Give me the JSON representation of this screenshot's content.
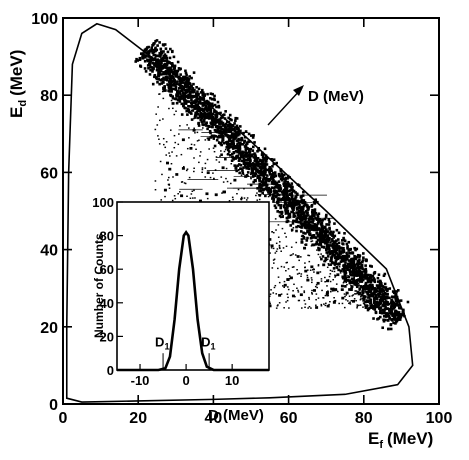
{
  "chart_data": [
    {
      "type": "scatter",
      "xlabel_main": "E",
      "xlabel_sub": "f",
      "xlabel_unit": "(MeV)",
      "ylabel_main": "E",
      "ylabel_sub": "d",
      "ylabel_unit": "(MeV)",
      "xlim": [
        0,
        100
      ],
      "ylim": [
        0,
        100
      ],
      "xticks": [
        "0",
        "20",
        "40",
        "60",
        "80",
        "100"
      ],
      "yticks": [
        "0",
        "20",
        "40",
        "60",
        "80",
        "100"
      ],
      "annotation": "D (MeV)",
      "band": {
        "x_start": 22,
        "x_end": 90,
        "y_start": 92,
        "y_end": 22,
        "half_width": 2.4
      },
      "kinematic_boundary": [
        [
          1,
          20
        ],
        [
          1.5,
          60
        ],
        [
          2.5,
          88
        ],
        [
          5,
          96
        ],
        [
          9,
          98.5
        ],
        [
          14,
          97
        ],
        [
          30,
          85
        ],
        [
          50,
          68
        ],
        [
          70,
          50
        ],
        [
          86,
          35
        ],
        [
          92,
          20
        ],
        [
          93,
          10
        ],
        [
          89,
          5
        ],
        [
          75,
          2.5
        ],
        [
          55,
          1.6
        ],
        [
          40,
          1.2
        ],
        [
          20,
          0.8
        ],
        [
          5,
          0.5
        ],
        [
          1,
          1.5
        ],
        [
          1,
          20
        ]
      ]
    },
    {
      "type": "line",
      "ylabel": "Number of Counts",
      "xlabel": "D (MeV)",
      "xlim": [
        -15,
        18
      ],
      "ylim": [
        0,
        100
      ],
      "xticks": [
        "-10",
        "0",
        "10"
      ],
      "yticks": [
        "0",
        "20",
        "40",
        "60",
        "80",
        "100"
      ],
      "x": [
        -15,
        -6,
        -4.5,
        -3.5,
        -2.5,
        -1.5,
        -0.5,
        0,
        0.5,
        1.5,
        2.5,
        3.5,
        4.5,
        6,
        18
      ],
      "values": [
        0,
        0,
        1,
        8,
        30,
        60,
        80,
        82,
        80,
        60,
        30,
        10,
        2,
        0,
        0
      ],
      "markers": [
        {
          "label": "D",
          "sub": "1",
          "x": -5
        },
        {
          "label": "D",
          "sub": "1",
          "x": 5
        }
      ]
    }
  ]
}
